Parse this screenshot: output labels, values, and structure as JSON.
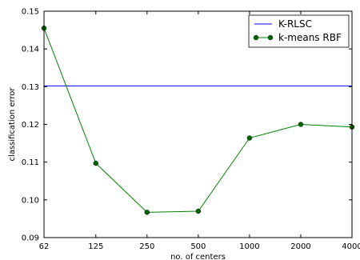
{
  "chart_data": {
    "type": "line",
    "x_scale": "log2",
    "xlabel": "no. of centers",
    "ylabel": "classification error",
    "x_ticks": [
      62,
      125,
      250,
      500,
      1000,
      2000,
      4000
    ],
    "x_tick_labels": [
      "62",
      "125",
      "250",
      "500",
      "1000",
      "2000",
      "4000"
    ],
    "xlim": [
      62,
      4000
    ],
    "y_ticks": [
      0.09,
      0.1,
      0.11,
      0.12,
      0.13,
      0.14,
      0.15
    ],
    "y_tick_labels": [
      "0.09",
      "0.10",
      "0.11",
      "0.12",
      "0.13",
      "0.14",
      "0.15"
    ],
    "ylim": [
      0.09,
      0.15
    ],
    "grid": false,
    "legend_position": "top-right",
    "series": [
      {
        "name": "K-RLSC",
        "color": "#0000ff",
        "marker": "none",
        "x": [
          62,
          4000
        ],
        "y": [
          0.1302,
          0.1302
        ]
      },
      {
        "name": "k-means RBF",
        "color": "#006400",
        "line_color": "#008000",
        "marker": "circle",
        "x": [
          62,
          125,
          250,
          500,
          1000,
          2000,
          4000
        ],
        "y": [
          0.1455,
          0.1097,
          0.0967,
          0.097,
          0.1164,
          0.12,
          0.1193
        ]
      }
    ]
  }
}
